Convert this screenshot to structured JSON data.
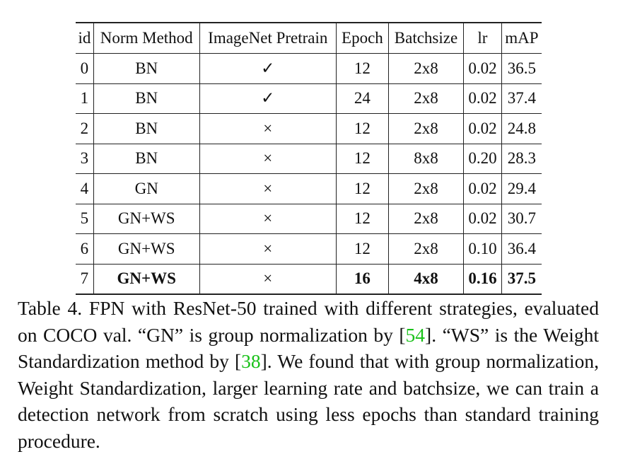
{
  "table": {
    "headers": [
      "id",
      "Norm Method",
      "ImageNet Pretrain",
      "Epoch",
      "Batchsize",
      "lr",
      "mAP"
    ],
    "rows": [
      {
        "id": "0",
        "norm": "BN",
        "pretrain": "✓",
        "epoch": "12",
        "batchsize": "2x8",
        "lr": "0.02",
        "map": "36.5",
        "bold": false
      },
      {
        "id": "1",
        "norm": "BN",
        "pretrain": "✓",
        "epoch": "24",
        "batchsize": "2x8",
        "lr": "0.02",
        "map": "37.4",
        "bold": false
      },
      {
        "id": "2",
        "norm": "BN",
        "pretrain": "×",
        "epoch": "12",
        "batchsize": "2x8",
        "lr": "0.02",
        "map": "24.8",
        "bold": false
      },
      {
        "id": "3",
        "norm": "BN",
        "pretrain": "×",
        "epoch": "12",
        "batchsize": "8x8",
        "lr": "0.20",
        "map": "28.3",
        "bold": false
      },
      {
        "id": "4",
        "norm": "GN",
        "pretrain": "×",
        "epoch": "12",
        "batchsize": "2x8",
        "lr": "0.02",
        "map": "29.4",
        "bold": false
      },
      {
        "id": "5",
        "norm": "GN+WS",
        "pretrain": "×",
        "epoch": "12",
        "batchsize": "2x8",
        "lr": "0.02",
        "map": "30.7",
        "bold": false
      },
      {
        "id": "6",
        "norm": "GN+WS",
        "pretrain": "×",
        "epoch": "12",
        "batchsize": "2x8",
        "lr": "0.10",
        "map": "36.4",
        "bold": false
      },
      {
        "id": "7",
        "norm": "GN+WS",
        "pretrain": "×",
        "epoch": "16",
        "batchsize": "4x8",
        "lr": "0.16",
        "map": "37.5",
        "bold": true
      }
    ]
  },
  "caption": {
    "part1": "Table 4. FPN with ResNet-50 trained with different strategies, evaluated on COCO val. “GN” is group normalization by [",
    "cite1": "54",
    "part2": "]. “WS” is the Weight Standardization method by [",
    "cite2": "38",
    "part3": "]. We found that with group normalization, Weight Standardization, larger learning rate and batchsize, we can train a detection network from scratch using less epochs than standard training procedure."
  },
  "colors": {
    "citation": "#19c119",
    "text": "#111111"
  }
}
